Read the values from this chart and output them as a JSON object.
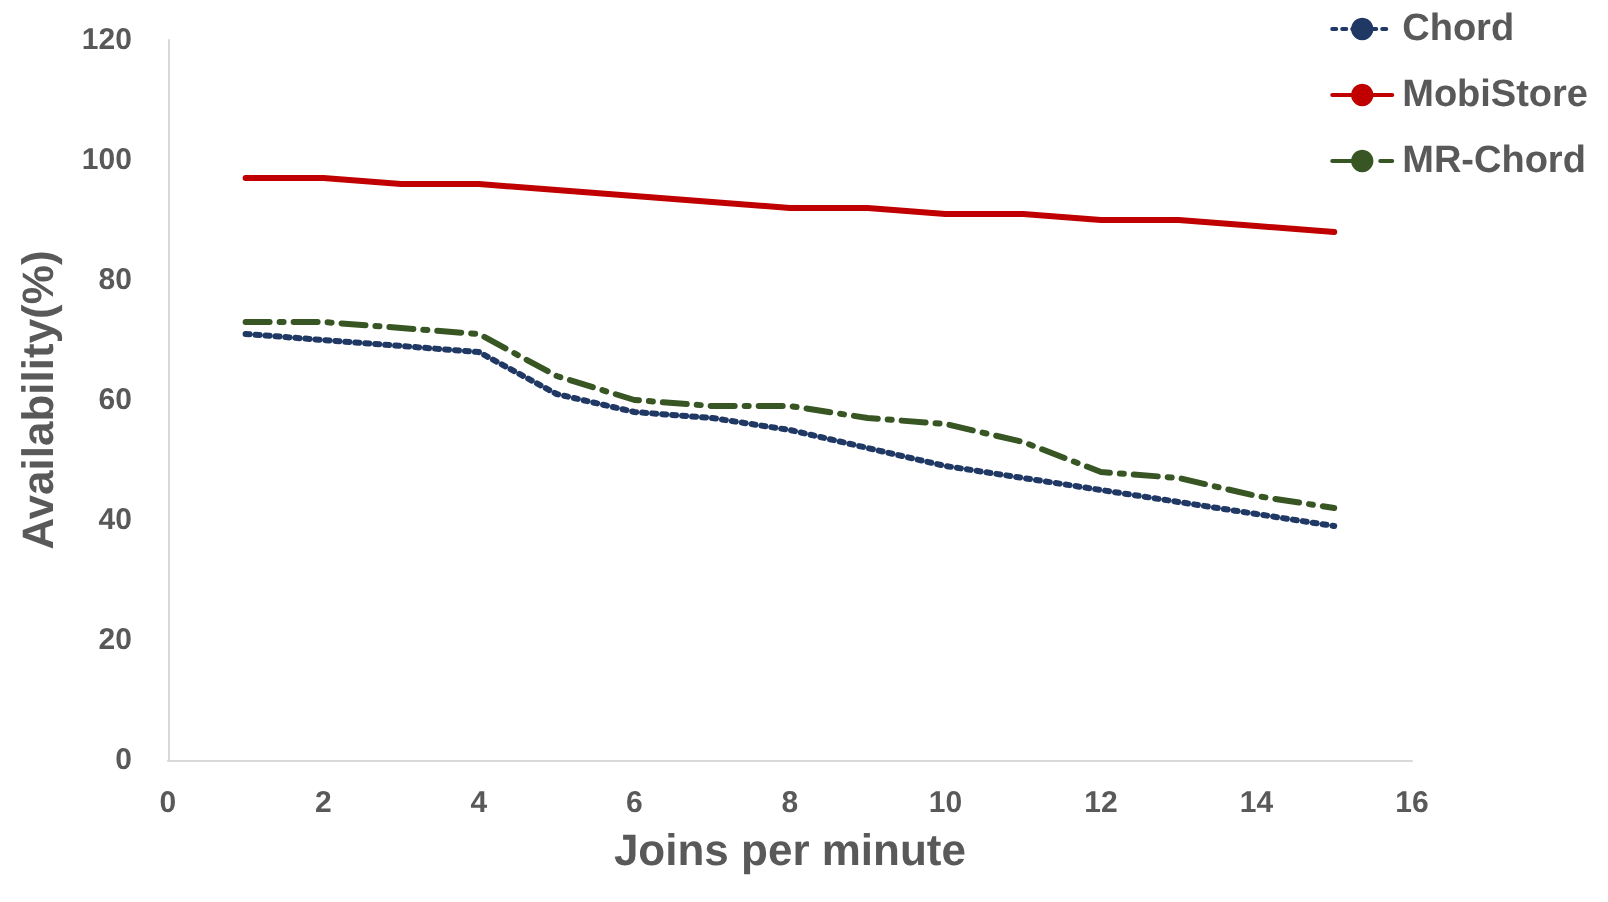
{
  "chart_data": {
    "type": "line",
    "xlabel": "Joins per minute",
    "ylabel": "Availability(%)",
    "x": [
      1,
      2,
      3,
      4,
      5,
      6,
      7,
      8,
      9,
      10,
      11,
      12,
      13,
      14,
      15
    ],
    "series": [
      {
        "name": "Chord",
        "color": "#203864",
        "line_style": "dotted",
        "values": [
          71,
          70,
          69,
          68,
          61,
          58,
          57,
          55,
          52,
          49,
          47,
          45,
          43,
          41,
          39
        ]
      },
      {
        "name": "MobiStore",
        "color": "#c00000",
        "line_style": "solid",
        "values": [
          97,
          97,
          96,
          96,
          95,
          94,
          93,
          92,
          92,
          91,
          91,
          90,
          90,
          89,
          88
        ]
      },
      {
        "name": "MR-Chord",
        "color": "#375623",
        "line_style": "dashed",
        "values": [
          73,
          73,
          72,
          71,
          64,
          60,
          59,
          59,
          57,
          56,
          53,
          48,
          47,
          44,
          42
        ]
      }
    ],
    "xlim": [
      0,
      16
    ],
    "xticks": [
      0,
      2,
      4,
      6,
      8,
      10,
      12,
      14,
      16
    ],
    "ylim": [
      0,
      120
    ],
    "yticks": [
      0,
      20,
      40,
      60,
      80,
      100,
      120
    ],
    "grid": false,
    "legend": "top right",
    "marker": "none"
  }
}
